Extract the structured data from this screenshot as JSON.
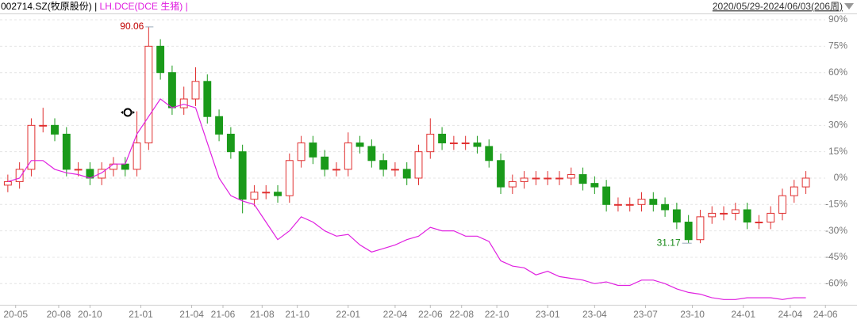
{
  "chart_data": {
    "type": "candlestick",
    "separator": "|",
    "date_range": "2020/05/29-2024/06/03(206周)",
    "x": [
      0,
      3,
      6,
      9,
      12,
      15,
      18,
      21,
      24,
      27,
      30,
      33,
      36,
      39,
      42,
      45,
      48,
      51,
      54,
      57,
      60,
      63,
      66,
      69,
      72,
      75,
      78,
      81,
      84,
      87,
      90,
      93,
      96,
      99,
      102,
      105,
      108,
      111,
      114,
      117,
      120,
      123,
      126,
      129,
      132,
      135,
      138,
      141,
      144,
      147,
      150,
      153,
      156,
      159,
      162,
      165,
      168,
      171,
      174,
      177,
      180,
      183,
      186,
      189,
      192,
      195,
      198,
      201,
      204
    ],
    "xlim": [
      -2,
      212
    ],
    "xticks": [
      {
        "value": 2,
        "label": "20-05"
      },
      {
        "value": 13,
        "label": "20-08"
      },
      {
        "value": 21,
        "label": "20-10"
      },
      {
        "value": 34,
        "label": "21-01"
      },
      {
        "value": 47,
        "label": "21-04"
      },
      {
        "value": 55,
        "label": "21-06"
      },
      {
        "value": 65,
        "label": "21-08"
      },
      {
        "value": 74,
        "label": "21-10"
      },
      {
        "value": 87,
        "label": "22-01"
      },
      {
        "value": 99,
        "label": "22-04"
      },
      {
        "value": 108,
        "label": "22-06"
      },
      {
        "value": 116,
        "label": "22-08"
      },
      {
        "value": 125,
        "label": "22-10"
      },
      {
        "value": 138,
        "label": "23-01"
      },
      {
        "value": 150,
        "label": "23-04"
      },
      {
        "value": 163,
        "label": "23-07"
      },
      {
        "value": 175,
        "label": "23-10"
      },
      {
        "value": 188,
        "label": "24-01"
      },
      {
        "value": 200,
        "label": "24-04"
      },
      {
        "value": 209,
        "label": "24-06"
      }
    ],
    "ylim": [
      -70,
      92
    ],
    "yticks": [
      {
        "value": 90,
        "label": "90%"
      },
      {
        "value": 75,
        "label": "75%"
      },
      {
        "value": 60,
        "label": "60%"
      },
      {
        "value": 45,
        "label": "45%"
      },
      {
        "value": 30,
        "label": "30%"
      },
      {
        "value": 15,
        "label": "15%"
      },
      {
        "value": 0,
        "label": "0%"
      },
      {
        "value": -15,
        "label": "-15%"
      },
      {
        "value": -30,
        "label": "-30%"
      },
      {
        "value": -45,
        "label": "-45%"
      },
      {
        "value": -60,
        "label": "-60%"
      }
    ],
    "grid": true,
    "series": [
      {
        "name": "002714.SZ(牧原股份)",
        "type": "candlestick",
        "color": "#000000",
        "up_color": "#e03030",
        "down_color": "#1a9a1a",
        "open": [
          -4,
          -2,
          5,
          30,
          30,
          25,
          5,
          5,
          0,
          5,
          8,
          5,
          20,
          75,
          60,
          40,
          45,
          55,
          35,
          25,
          15,
          -12,
          -8,
          -8,
          -10,
          10,
          20,
          12,
          5,
          5,
          20,
          18,
          10,
          5,
          5,
          0,
          15,
          25,
          20,
          20,
          20,
          18,
          10,
          -5,
          -2,
          0,
          0,
          0,
          0,
          2,
          -3,
          -5,
          -15,
          -15,
          -15,
          -12,
          -15,
          -18,
          -25,
          -35,
          -22,
          -20,
          -20,
          -18,
          -25,
          -25,
          -20,
          -10,
          -5
        ],
        "high": [
          2,
          9,
          34,
          40,
          34,
          29,
          9,
          9,
          9,
          12,
          12,
          38,
          86,
          79,
          64,
          52,
          63,
          59,
          39,
          29,
          19,
          -4,
          -4,
          -4,
          14,
          24,
          24,
          16,
          9,
          26,
          24,
          22,
          14,
          9,
          9,
          19,
          34,
          29,
          24,
          24,
          24,
          22,
          14,
          2,
          4,
          4,
          4,
          4,
          6,
          6,
          1,
          -1,
          -11,
          -11,
          -8,
          -8,
          -11,
          -14,
          -21,
          -18,
          -16,
          -16,
          -14,
          -14,
          -21,
          -16,
          -6,
          -1,
          4
        ],
        "low": [
          -8,
          -6,
          1,
          26,
          21,
          1,
          1,
          -4,
          -4,
          1,
          1,
          1,
          16,
          56,
          36,
          36,
          41,
          31,
          21,
          11,
          -20,
          -16,
          -12,
          -14,
          -14,
          6,
          8,
          1,
          1,
          1,
          14,
          6,
          1,
          1,
          -4,
          -4,
          11,
          16,
          16,
          16,
          14,
          6,
          -9,
          -9,
          -6,
          -4,
          -4,
          -4,
          -4,
          -7,
          -9,
          -19,
          -19,
          -19,
          -19,
          -19,
          -22,
          -29,
          -37,
          -37,
          -26,
          -24,
          -24,
          -29,
          -29,
          -29,
          -24,
          -14,
          -9
        ],
        "close": [
          -2,
          5,
          30,
          30,
          25,
          5,
          5,
          0,
          5,
          8,
          5,
          20,
          75,
          60,
          40,
          45,
          55,
          35,
          25,
          15,
          -12,
          -8,
          -8,
          -10,
          10,
          20,
          12,
          5,
          5,
          20,
          18,
          10,
          5,
          5,
          0,
          15,
          25,
          20,
          20,
          20,
          18,
          10,
          -5,
          -2,
          0,
          0,
          0,
          0,
          2,
          -3,
          -5,
          -15,
          -15,
          -15,
          -12,
          -15,
          -18,
          -25,
          -35,
          -22,
          -20,
          -20,
          -18,
          -25,
          -25,
          -20,
          -10,
          -5,
          0
        ]
      },
      {
        "name": "LH.DCE(DCE 生猪)",
        "type": "line",
        "color": "#e020e0",
        "values": [
          -2,
          0,
          10,
          10,
          5,
          3,
          2,
          0,
          3,
          8,
          8,
          25,
          35,
          45,
          40,
          42,
          40,
          20,
          0,
          -10,
          -13,
          -15,
          -25,
          -35,
          -30,
          -22,
          -25,
          -30,
          -33,
          -32,
          -38,
          -42,
          -40,
          -38,
          -35,
          -33,
          -28,
          -30,
          -30,
          -33,
          -33,
          -36,
          -47,
          -50,
          -51,
          -55,
          -53,
          -56,
          -57,
          -58,
          -60,
          -59,
          -61,
          -61,
          -58,
          -58,
          -60,
          -63,
          -65,
          -66,
          -68,
          -69,
          -69,
          -68,
          -68,
          -68,
          -69,
          -68,
          -68
        ]
      }
    ],
    "annotations": [
      {
        "text": "90.06",
        "color": "#c00000"
      },
      {
        "text": "31.17",
        "color": "#1a8a1a"
      }
    ]
  }
}
